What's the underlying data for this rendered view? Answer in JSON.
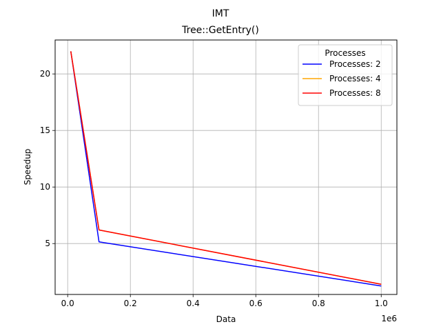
{
  "chart_data": {
    "type": "line",
    "suptitle": "IMT",
    "title": "Tree::GetEntry()",
    "xlabel": "Data",
    "ylabel": "Speedup",
    "x_offset_label": "1e6",
    "xlim": [
      -40000,
      1050000
    ],
    "ylim": [
      0.5,
      23.0
    ],
    "x_ticks": [
      0,
      200000,
      400000,
      600000,
      800000,
      1000000
    ],
    "x_tick_labels": [
      "0.0",
      "0.2",
      "0.4",
      "0.6",
      "0.8",
      "1.0"
    ],
    "y_ticks": [
      5,
      10,
      15,
      20
    ],
    "y_tick_labels": [
      "5",
      "10",
      "15",
      "20"
    ],
    "grid": true,
    "legend": {
      "title": "Processes",
      "placement": "top-right"
    },
    "series": [
      {
        "name": "Processes: 2",
        "color": "#0000ff",
        "x": [
          10000,
          100000,
          1000000
        ],
        "y": [
          22.0,
          5.15,
          1.25
        ]
      },
      {
        "name": "Processes: 4",
        "color": "#ffa500",
        "x": [
          10000,
          100000,
          1000000
        ],
        "y": [
          22.0,
          6.2,
          1.4
        ]
      },
      {
        "name": "Processes: 8",
        "color": "#ff0000",
        "x": [
          10000,
          100000,
          1000000
        ],
        "y": [
          22.0,
          6.2,
          1.4
        ]
      }
    ]
  }
}
